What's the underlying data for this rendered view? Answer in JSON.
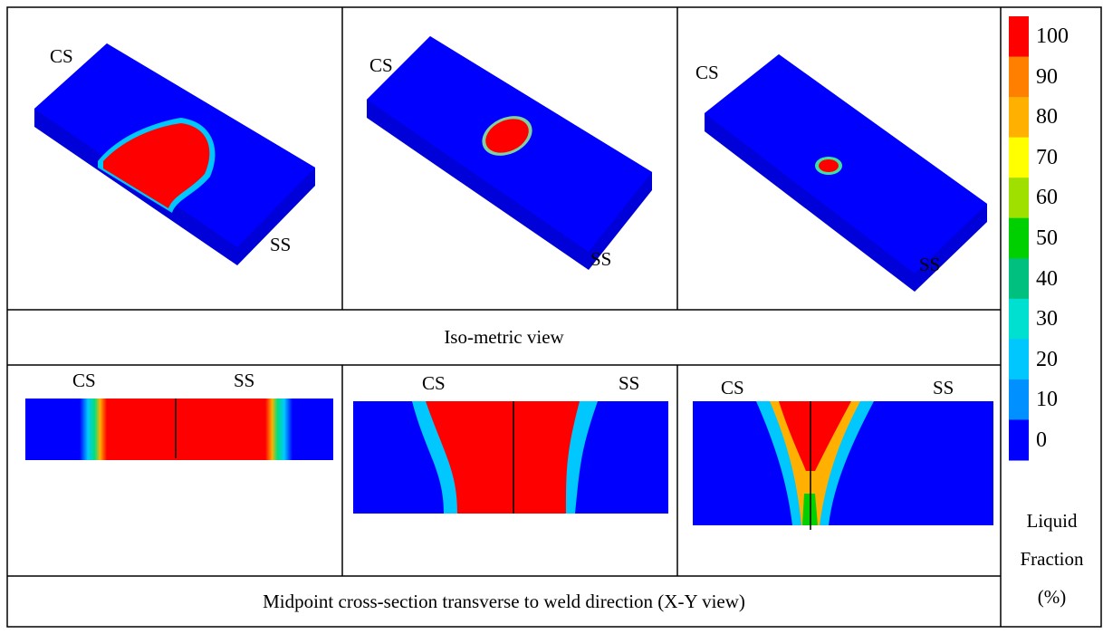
{
  "panels": [
    {
      "cs": "CS",
      "ss": "SS"
    },
    {
      "cs": "CS",
      "ss": "SS"
    },
    {
      "cs": "CS",
      "ss": "SS"
    }
  ],
  "iso_caption": "Iso-metric view",
  "sections": [
    {
      "cs": "CS",
      "ss": "SS"
    },
    {
      "cs": "CS",
      "ss": "SS"
    },
    {
      "cs": "CS",
      "ss": "SS"
    }
  ],
  "section_caption": "Midpoint cross-section transverse to weld direction (X-Y view)",
  "legend": {
    "ticks": [
      100,
      90,
      80,
      70,
      60,
      50,
      40,
      30,
      20,
      10,
      0
    ],
    "title": [
      "Liquid",
      "Fraction",
      "(%)"
    ]
  }
}
